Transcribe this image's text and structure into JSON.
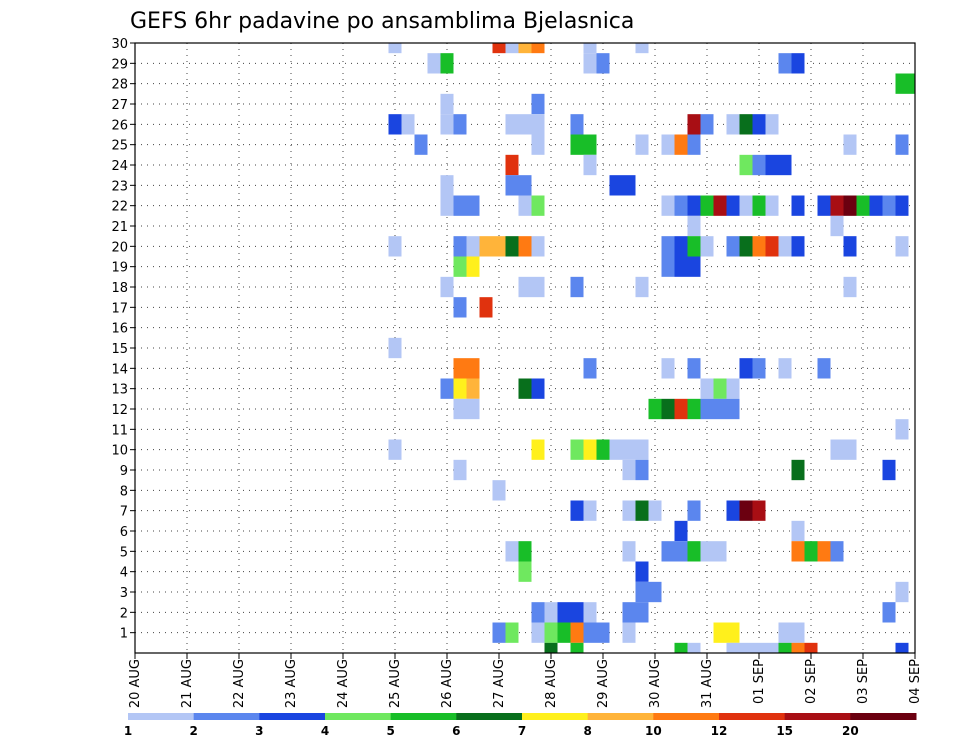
{
  "chart_data": {
    "type": "heatmap",
    "title": "GEFS 6hr padavine po ansamblima Bjelasnica",
    "xlabel": "",
    "ylabel": "",
    "x_range": [
      0,
      60
    ],
    "y_range": [
      0,
      30
    ],
    "x_ticks": [
      {
        "x": 0,
        "label": "20 AUG"
      },
      {
        "x": 4,
        "label": "21 AUG"
      },
      {
        "x": 8,
        "label": "22 AUG"
      },
      {
        "x": 12,
        "label": "23 AUG"
      },
      {
        "x": 16,
        "label": "24 AUG"
      },
      {
        "x": 20,
        "label": "25 AUG"
      },
      {
        "x": 24,
        "label": "26 AUG"
      },
      {
        "x": 28,
        "label": "27 AUG"
      },
      {
        "x": 32,
        "label": "28 AUG"
      },
      {
        "x": 36,
        "label": "29 AUG"
      },
      {
        "x": 40,
        "label": "30 AUG"
      },
      {
        "x": 44,
        "label": "31 AUG"
      },
      {
        "x": 48,
        "label": "01 SEP"
      },
      {
        "x": 52,
        "label": "02 SEP"
      },
      {
        "x": 56,
        "label": "03 SEP"
      },
      {
        "x": 60,
        "label": "04 SEP"
      }
    ],
    "y_ticks": [
      1,
      2,
      3,
      4,
      5,
      6,
      7,
      8,
      9,
      10,
      11,
      12,
      13,
      14,
      15,
      16,
      17,
      18,
      19,
      20,
      21,
      22,
      23,
      24,
      25,
      26,
      27,
      28,
      29,
      30
    ],
    "grid": true,
    "colorbar": {
      "labels": [
        "1",
        "2",
        "3",
        "4",
        "5",
        "6",
        "7",
        "8",
        "10",
        "12",
        "15",
        "20"
      ],
      "colors": [
        "#b3c6f5",
        "#5b86ee",
        "#1a45e0",
        "#6fe85f",
        "#18be28",
        "#086f1c",
        "#fff01c",
        "#ffb43a",
        "#ff7a12",
        "#e0320e",
        "#a80e14",
        "#6b0010"
      ]
    },
    "cells": [
      [
        20,
        30,
        1
      ],
      [
        28,
        30,
        10
      ],
      [
        29,
        30,
        1
      ],
      [
        30,
        30,
        8
      ],
      [
        31,
        30,
        9
      ],
      [
        35,
        30,
        1
      ],
      [
        39,
        30,
        1
      ],
      [
        23,
        29,
        1
      ],
      [
        24,
        29,
        5
      ],
      [
        35,
        29,
        1
      ],
      [
        36,
        29,
        2
      ],
      [
        50,
        29,
        2
      ],
      [
        51,
        29,
        3
      ],
      [
        59,
        28,
        5
      ],
      [
        60,
        28,
        5
      ],
      [
        24,
        27,
        1
      ],
      [
        31,
        27,
        2
      ],
      [
        20,
        26,
        3
      ],
      [
        21,
        26,
        1
      ],
      [
        24,
        26,
        1
      ],
      [
        25,
        26,
        2
      ],
      [
        29,
        26,
        1
      ],
      [
        30,
        26,
        1
      ],
      [
        31,
        26,
        1
      ],
      [
        34,
        26,
        2
      ],
      [
        43,
        26,
        11
      ],
      [
        44,
        26,
        2
      ],
      [
        46,
        26,
        1
      ],
      [
        47,
        26,
        6
      ],
      [
        48,
        26,
        3
      ],
      [
        49,
        26,
        1
      ],
      [
        22,
        25,
        2
      ],
      [
        31,
        25,
        1
      ],
      [
        34,
        25,
        5
      ],
      [
        35,
        25,
        5
      ],
      [
        39,
        25,
        1
      ],
      [
        41,
        25,
        1
      ],
      [
        42,
        25,
        9
      ],
      [
        43,
        25,
        2
      ],
      [
        55,
        25,
        1
      ],
      [
        59,
        25,
        2
      ],
      [
        29,
        24,
        10
      ],
      [
        35,
        24,
        1
      ],
      [
        47,
        24,
        4
      ],
      [
        48,
        24,
        2
      ],
      [
        49,
        24,
        3
      ],
      [
        50,
        24,
        3
      ],
      [
        24,
        23,
        1
      ],
      [
        29,
        23,
        2
      ],
      [
        30,
        23,
        2
      ],
      [
        37,
        23,
        3
      ],
      [
        38,
        23,
        3
      ],
      [
        24,
        22,
        1
      ],
      [
        25,
        22,
        2
      ],
      [
        26,
        22,
        2
      ],
      [
        30,
        22,
        1
      ],
      [
        31,
        22,
        4
      ],
      [
        41,
        22,
        1
      ],
      [
        42,
        22,
        2
      ],
      [
        43,
        22,
        3
      ],
      [
        44,
        22,
        5
      ],
      [
        45,
        22,
        11
      ],
      [
        46,
        22,
        3
      ],
      [
        47,
        22,
        1
      ],
      [
        48,
        22,
        5
      ],
      [
        49,
        22,
        1
      ],
      [
        51,
        22,
        3
      ],
      [
        53,
        22,
        3
      ],
      [
        54,
        22,
        11
      ],
      [
        55,
        22,
        12
      ],
      [
        56,
        22,
        5
      ],
      [
        57,
        22,
        3
      ],
      [
        58,
        22,
        2
      ],
      [
        59,
        22,
        3
      ],
      [
        43,
        21,
        1
      ],
      [
        54,
        21,
        1
      ],
      [
        20,
        20,
        1
      ],
      [
        25,
        20,
        2
      ],
      [
        26,
        20,
        1
      ],
      [
        27,
        20,
        8
      ],
      [
        28,
        20,
        8
      ],
      [
        29,
        20,
        6
      ],
      [
        30,
        20,
        9
      ],
      [
        31,
        20,
        1
      ],
      [
        41,
        20,
        2
      ],
      [
        42,
        20,
        3
      ],
      [
        43,
        20,
        5
      ],
      [
        44,
        20,
        1
      ],
      [
        46,
        20,
        2
      ],
      [
        47,
        20,
        6
      ],
      [
        48,
        20,
        9
      ],
      [
        49,
        20,
        10
      ],
      [
        50,
        20,
        1
      ],
      [
        51,
        20,
        3
      ],
      [
        55,
        20,
        3
      ],
      [
        59,
        20,
        1
      ],
      [
        41,
        19,
        2
      ],
      [
        42,
        19,
        3
      ],
      [
        43,
        19,
        3
      ],
      [
        25,
        19,
        4
      ],
      [
        26,
        19,
        7
      ],
      [
        24,
        18,
        1
      ],
      [
        30,
        18,
        1
      ],
      [
        31,
        18,
        1
      ],
      [
        34,
        18,
        2
      ],
      [
        39,
        18,
        1
      ],
      [
        55,
        18,
        1
      ],
      [
        25,
        17,
        2
      ],
      [
        27,
        17,
        10
      ],
      [
        20,
        15,
        1
      ],
      [
        25,
        14,
        9
      ],
      [
        26,
        14,
        9
      ],
      [
        35,
        14,
        2
      ],
      [
        41,
        14,
        1
      ],
      [
        43,
        14,
        2
      ],
      [
        47,
        14,
        3
      ],
      [
        48,
        14,
        2
      ],
      [
        50,
        14,
        1
      ],
      [
        53,
        14,
        2
      ],
      [
        24,
        13,
        2
      ],
      [
        25,
        13,
        7
      ],
      [
        26,
        13,
        8
      ],
      [
        30,
        13,
        6
      ],
      [
        31,
        13,
        3
      ],
      [
        44,
        13,
        1
      ],
      [
        45,
        13,
        4
      ],
      [
        46,
        13,
        1
      ],
      [
        25,
        12,
        1
      ],
      [
        26,
        12,
        1
      ],
      [
        40,
        12,
        5
      ],
      [
        41,
        12,
        6
      ],
      [
        42,
        12,
        10
      ],
      [
        43,
        12,
        5
      ],
      [
        44,
        12,
        2
      ],
      [
        45,
        12,
        2
      ],
      [
        46,
        12,
        2
      ],
      [
        59,
        11,
        1
      ],
      [
        20,
        10,
        1
      ],
      [
        31,
        10,
        7
      ],
      [
        34,
        10,
        4
      ],
      [
        35,
        10,
        7
      ],
      [
        36,
        10,
        5
      ],
      [
        37,
        10,
        1
      ],
      [
        38,
        10,
        1
      ],
      [
        39,
        10,
        1
      ],
      [
        54,
        10,
        1
      ],
      [
        55,
        10,
        1
      ],
      [
        25,
        9,
        1
      ],
      [
        38,
        9,
        1
      ],
      [
        39,
        9,
        2
      ],
      [
        51,
        9,
        6
      ],
      [
        58,
        9,
        3
      ],
      [
        28,
        8,
        1
      ],
      [
        34,
        7,
        3
      ],
      [
        35,
        7,
        1
      ],
      [
        38,
        7,
        1
      ],
      [
        39,
        7,
        6
      ],
      [
        40,
        7,
        1
      ],
      [
        43,
        7,
        2
      ],
      [
        46,
        7,
        3
      ],
      [
        47,
        7,
        12
      ],
      [
        48,
        7,
        11
      ],
      [
        42,
        6,
        3
      ],
      [
        51,
        6,
        1
      ],
      [
        29,
        5,
        1
      ],
      [
        30,
        5,
        5
      ],
      [
        38,
        5,
        1
      ],
      [
        41,
        5,
        2
      ],
      [
        42,
        5,
        2
      ],
      [
        43,
        5,
        5
      ],
      [
        44,
        5,
        1
      ],
      [
        45,
        5,
        1
      ],
      [
        51,
        5,
        9
      ],
      [
        52,
        5,
        5
      ],
      [
        53,
        5,
        9
      ],
      [
        54,
        5,
        2
      ],
      [
        30,
        4,
        4
      ],
      [
        39,
        4,
        3
      ],
      [
        39,
        3,
        2
      ],
      [
        40,
        3,
        2
      ],
      [
        59,
        3,
        1
      ],
      [
        31,
        2,
        2
      ],
      [
        32,
        2,
        1
      ],
      [
        33,
        2,
        3
      ],
      [
        34,
        2,
        3
      ],
      [
        35,
        2,
        1
      ],
      [
        38,
        2,
        2
      ],
      [
        39,
        2,
        2
      ],
      [
        58,
        2,
        2
      ],
      [
        28,
        1,
        2
      ],
      [
        29,
        1,
        4
      ],
      [
        31,
        1,
        1
      ],
      [
        32,
        1,
        4
      ],
      [
        33,
        1,
        5
      ],
      [
        34,
        1,
        9
      ],
      [
        35,
        1,
        2
      ],
      [
        36,
        1,
        2
      ],
      [
        38,
        1,
        1
      ],
      [
        45,
        1,
        7
      ],
      [
        46,
        1,
        7
      ],
      [
        50,
        1,
        1
      ],
      [
        51,
        1,
        1
      ],
      [
        32,
        0,
        6
      ],
      [
        34,
        0,
        5
      ],
      [
        42,
        0,
        5
      ],
      [
        43,
        0,
        1
      ],
      [
        46,
        0,
        1
      ],
      [
        47,
        0,
        1
      ],
      [
        48,
        0,
        1
      ],
      [
        49,
        0,
        1
      ],
      [
        50,
        0,
        5
      ],
      [
        51,
        0,
        9
      ],
      [
        52,
        0,
        10
      ],
      [
        59,
        0,
        3
      ]
    ]
  }
}
